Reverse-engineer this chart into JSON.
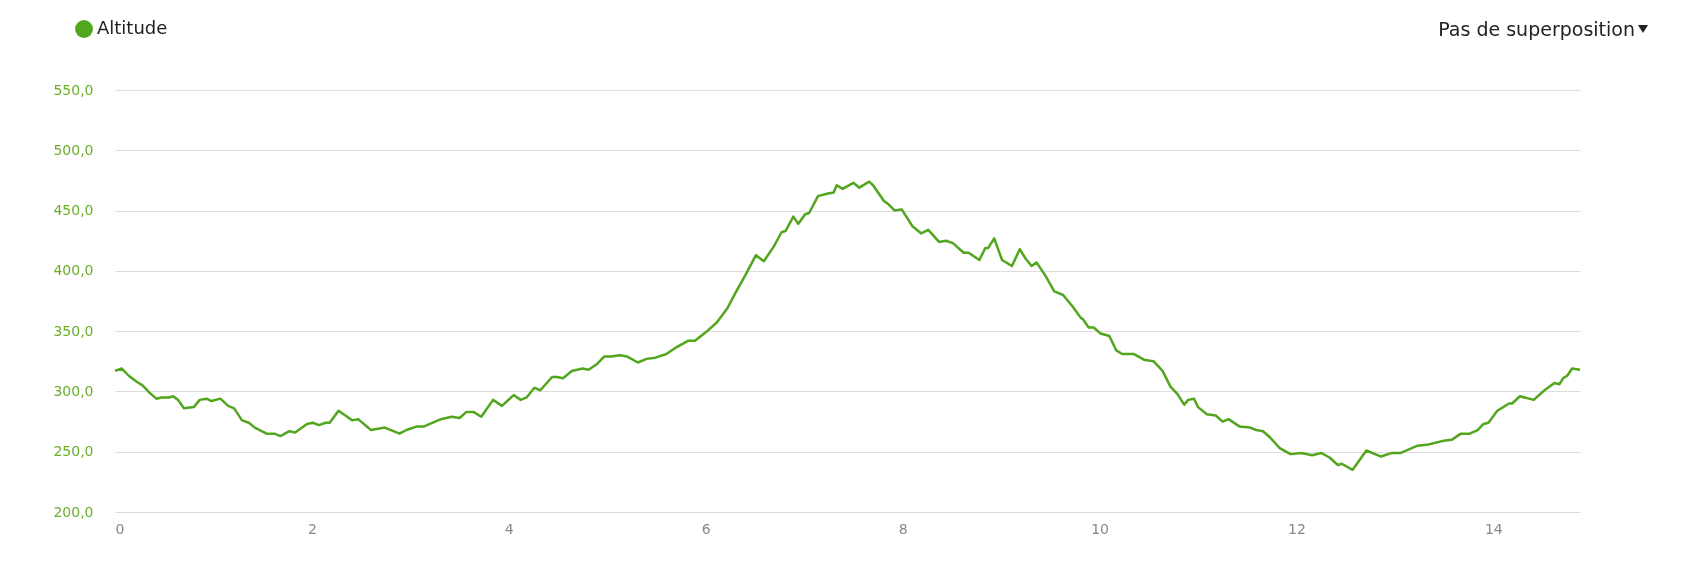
{
  "chart_data": {
    "type": "line",
    "series": [
      {
        "name": "Altitude",
        "color": "#52a61e",
        "x": [
          0,
          0.07,
          0.14,
          0.22,
          0.28,
          0.35,
          0.42,
          0.47,
          0.55,
          0.59,
          0.64,
          0.7,
          0.8,
          0.86,
          0.93,
          0.98,
          1.07,
          1.15,
          1.21,
          1.29,
          1.36,
          1.42,
          1.54,
          1.62,
          1.68,
          1.77,
          1.83,
          1.95,
          2.01,
          2.07,
          2.14,
          2.18,
          2.27,
          2.34,
          2.41,
          2.47,
          2.6,
          2.67,
          2.74,
          2.89,
          2.96,
          3.07,
          3.14,
          3.31,
          3.42,
          3.5,
          3.57,
          3.64,
          3.72,
          3.84,
          3.93,
          4.05,
          4.12,
          4.18,
          4.26,
          4.32,
          4.44,
          4.49,
          4.55,
          4.64,
          4.75,
          4.81,
          4.9,
          4.97,
          5.04,
          5.13,
          5.2,
          5.31,
          5.4,
          5.49,
          5.6,
          5.71,
          5.82,
          5.89,
          6,
          6.11,
          6.22,
          6.31,
          6.4,
          6.51,
          6.59,
          6.69,
          6.77,
          6.81,
          6.89,
          6.94,
          7.01,
          7.05,
          7.14,
          7.23,
          7.3,
          7.33,
          7.39,
          7.5,
          7.56,
          7.66,
          7.7,
          7.81,
          7.86,
          7.92,
          7.99,
          8.1,
          8.19,
          8.26,
          8.37,
          8.44,
          8.51,
          8.62,
          8.67,
          8.78,
          8.84,
          8.87,
          8.93,
          9.01,
          9.11,
          9.19,
          9.25,
          9.31,
          9.36,
          9.45,
          9.54,
          9.63,
          9.72,
          9.81,
          9.83,
          9.89,
          9.94,
          10.01,
          10.1,
          10.17,
          10.23,
          10.35,
          10.46,
          10.55,
          10.64,
          10.72,
          10.79,
          10.86,
          10.9,
          10.96,
          11,
          11.09,
          11.18,
          11.25,
          11.31,
          11.42,
          11.53,
          11.59,
          11.66,
          11.73,
          11.83,
          11.94,
          12.05,
          12.16,
          12.25,
          12.34,
          12.42,
          12.46,
          12.57,
          12.64,
          12.71,
          12.86,
          12.97,
          13.06,
          13.23,
          13.34,
          13.49,
          13.58,
          13.67,
          13.76,
          13.84,
          13.9,
          13.95,
          14.04,
          14.16,
          14.19,
          14.27,
          14.41,
          14.52,
          14.62,
          14.67,
          14.71,
          14.75,
          14.8,
          14.88
        ],
        "values": [
          317,
          319,
          313,
          308,
          305,
          299,
          294,
          295,
          295,
          296,
          293,
          286,
          287,
          293,
          294,
          292,
          294,
          288,
          286,
          276,
          274,
          270,
          265,
          265,
          263,
          267,
          266,
          273,
          274,
          272,
          274,
          274,
          284,
          280,
          276,
          277,
          268,
          269,
          270,
          265,
          268,
          271,
          271,
          277,
          279,
          278,
          283,
          283,
          279,
          293,
          288,
          297,
          293,
          295,
          303,
          301,
          312,
          312,
          311,
          317,
          319,
          318,
          323,
          329,
          329,
          330,
          329,
          324,
          327,
          328,
          331,
          337,
          342,
          342,
          349,
          357,
          369,
          383,
          396,
          413,
          408,
          420,
          432,
          433,
          445,
          439,
          447,
          448,
          462,
          464,
          465,
          471,
          468,
          473,
          469,
          474,
          471,
          458,
          455,
          450,
          451,
          437,
          431,
          434,
          424,
          425,
          423,
          415,
          415,
          409,
          419,
          419,
          427,
          409,
          404,
          418,
          410,
          404,
          407,
          396,
          383,
          380,
          371,
          361,
          360,
          353,
          353,
          348,
          346,
          334,
          331,
          331,
          326,
          325,
          317,
          304,
          298,
          289,
          293,
          294,
          287,
          281,
          280,
          275,
          277,
          271,
          270,
          268,
          267,
          262,
          253,
          248,
          249,
          247,
          249,
          245,
          239,
          240,
          235,
          243,
          251,
          246,
          249,
          249,
          255,
          256,
          259,
          260,
          265,
          265,
          268,
          273,
          274,
          284,
          290,
          290,
          296,
          293,
          301,
          307,
          306,
          311,
          313,
          319,
          318
        ]
      }
    ],
    "xlim": [
      0,
      14.88
    ],
    "xticks": [
      0,
      2,
      4,
      6,
      8,
      10,
      12,
      14
    ],
    "ylim": [
      200,
      550
    ],
    "yticks": [
      {
        "value": 200,
        "label": "200,0"
      },
      {
        "value": 250,
        "label": "250,0"
      },
      {
        "value": 300,
        "label": "300,0"
      },
      {
        "value": 350,
        "label": "350,0"
      },
      {
        "value": 400,
        "label": "400,0"
      },
      {
        "value": 450,
        "label": "450,0"
      },
      {
        "value": 500,
        "label": "500,0"
      },
      {
        "value": 550,
        "label": "550,0"
      }
    ],
    "grid": "y",
    "legend": "top left",
    "marker": "none",
    "line_style": "solid",
    "annotations": [
      "Pas de superposition"
    ]
  }
}
